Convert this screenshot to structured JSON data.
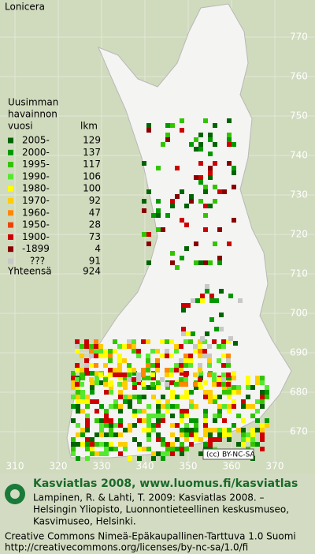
{
  "map": {
    "title": "Lonicera",
    "legend": {
      "heading": [
        "Uusimman",
        "havainnon",
        "vuosi"
      ],
      "count_heading": "lkm",
      "rows": [
        {
          "label": "2005-",
          "count": 129,
          "color": "#006400"
        },
        {
          "label": "2000-",
          "count": 137,
          "color": "#009a00"
        },
        {
          "label": "1995-",
          "count": 117,
          "color": "#33c400"
        },
        {
          "label": "1990-",
          "count": 106,
          "color": "#55e830"
        },
        {
          "label": "1980-",
          "count": 100,
          "color": "#ffff00"
        },
        {
          "label": "1970-",
          "count": 92,
          "color": "#ffcc00"
        },
        {
          "label": "1960-",
          "count": 47,
          "color": "#ff8800"
        },
        {
          "label": "1950-",
          "count": 28,
          "color": "#ee4400"
        },
        {
          "label": "1900-",
          "count": 73,
          "color": "#cc0000"
        },
        {
          "label": "-1899",
          "count": 4,
          "color": "#880000"
        },
        {
          "label": "???",
          "count": 91,
          "color": "#c8c8c8"
        }
      ],
      "total_label": "Yhteensä",
      "total": 924
    },
    "grid": {
      "y_labels": [
        770,
        760,
        750,
        740,
        730,
        720,
        710,
        700,
        690,
        680,
        670
      ],
      "x_labels": [
        310,
        320,
        330,
        340,
        350,
        360,
        370
      ]
    },
    "badge": "BY-NC-SA"
  },
  "footer": {
    "title": "Kasviatlas 2008, www.luomus.fi/kasviatlas",
    "citation": [
      "Lampinen, R. & Lahti, T. 2009: Kasviatlas 2008. –",
      "Helsingin Yliopisto, Luonnontieteellinen keskusmuseo,",
      "Kasvimuseo, Helsinki."
    ],
    "license": [
      "Creative Commons Nimeä-Epäkaupallinen-Tarttuva 1.0 Suomi",
      "http://creativecommons.org/licenses/by-nc-sa/1.0/fi"
    ]
  }
}
